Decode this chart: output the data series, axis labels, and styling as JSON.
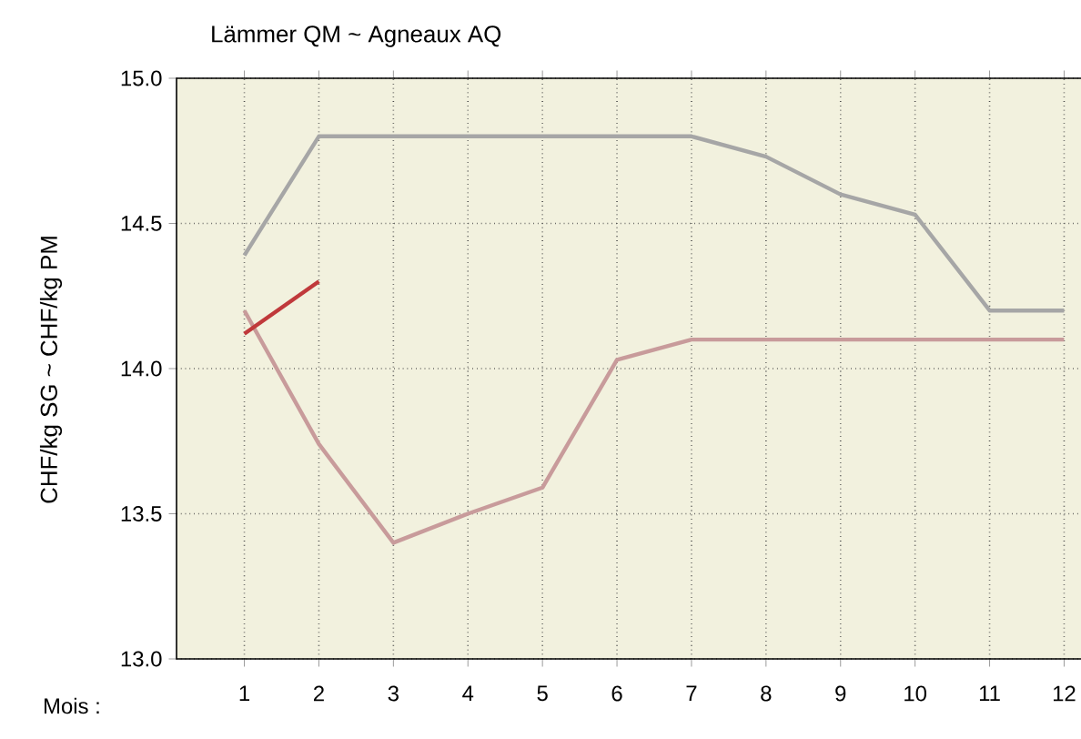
{
  "chart_data": {
    "type": "line",
    "title": "Lämmer QM   ~   Agneaux AQ",
    "ylabel": "CHF/kg SG   ~   CHF/kg PM",
    "xlabel": "Mois :",
    "categories": [
      "1",
      "2",
      "3",
      "4",
      "5",
      "6",
      "7",
      "8",
      "9",
      "10",
      "11",
      "12"
    ],
    "series": [
      {
        "color": "#a6a6a6",
        "values": [
          14.39,
          14.8,
          14.8,
          14.8,
          14.8,
          14.8,
          14.8,
          14.73,
          14.6,
          14.53,
          14.2,
          14.2
        ]
      },
      {
        "color": "#c89b9b",
        "values": [
          14.2,
          13.74,
          13.4,
          13.5,
          13.59,
          14.03,
          14.1,
          14.1,
          14.1,
          14.1,
          14.1,
          14.1
        ]
      },
      {
        "color": "#c0393b",
        "values": [
          14.12,
          14.3,
          null,
          null,
          null,
          null,
          null,
          null,
          null,
          null,
          null,
          null
        ]
      }
    ],
    "ylim": [
      13.0,
      15.0
    ],
    "yticks": [
      {
        "value": 13,
        "label": "13.0"
      },
      {
        "value": 13.5,
        "label": "13.5"
      },
      {
        "value": 14,
        "label": "14.0"
      },
      {
        "value": 14.5,
        "label": "14.5"
      },
      {
        "value": 15,
        "label": "15.0"
      }
    ],
    "grid": true,
    "marker": "none",
    "line_style": "solid"
  }
}
